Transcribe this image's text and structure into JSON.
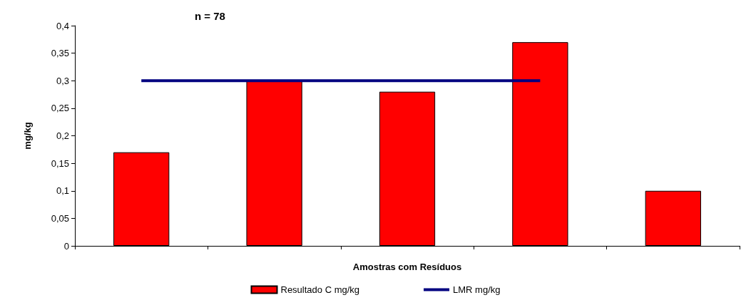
{
  "chart_data": {
    "type": "bar",
    "title": "n = 78",
    "xlabel": "Amostras com Resíduos",
    "ylabel": "mg/kg",
    "categories": [
      null,
      null,
      null,
      null,
      null
    ],
    "series": [
      {
        "name": "Resultado C mg/kg",
        "color": "#ff0000",
        "values": [
          0.17,
          0.3,
          0.28,
          0.37,
          0.1
        ]
      },
      {
        "name": "LMR mg/kg",
        "type": "line",
        "color": "#000080",
        "values": [
          0.3,
          0.3,
          0.3,
          0.3,
          null
        ]
      }
    ],
    "ylim": [
      0,
      0.4
    ],
    "yticks": [
      {
        "value": 0,
        "label": "0"
      },
      {
        "value": 0.05,
        "label": "0,05"
      },
      {
        "value": 0.1,
        "label": "0,1"
      },
      {
        "value": 0.15,
        "label": "0,15"
      },
      {
        "value": 0.2,
        "label": "0,2"
      },
      {
        "value": 0.25,
        "label": "0,25"
      },
      {
        "value": 0.3,
        "label": "0,3"
      },
      {
        "value": 0.35,
        "label": "0,35"
      },
      {
        "value": 0.4,
        "label": "0,4"
      }
    ],
    "grid": false,
    "legend": "bottom",
    "marker": "none"
  }
}
